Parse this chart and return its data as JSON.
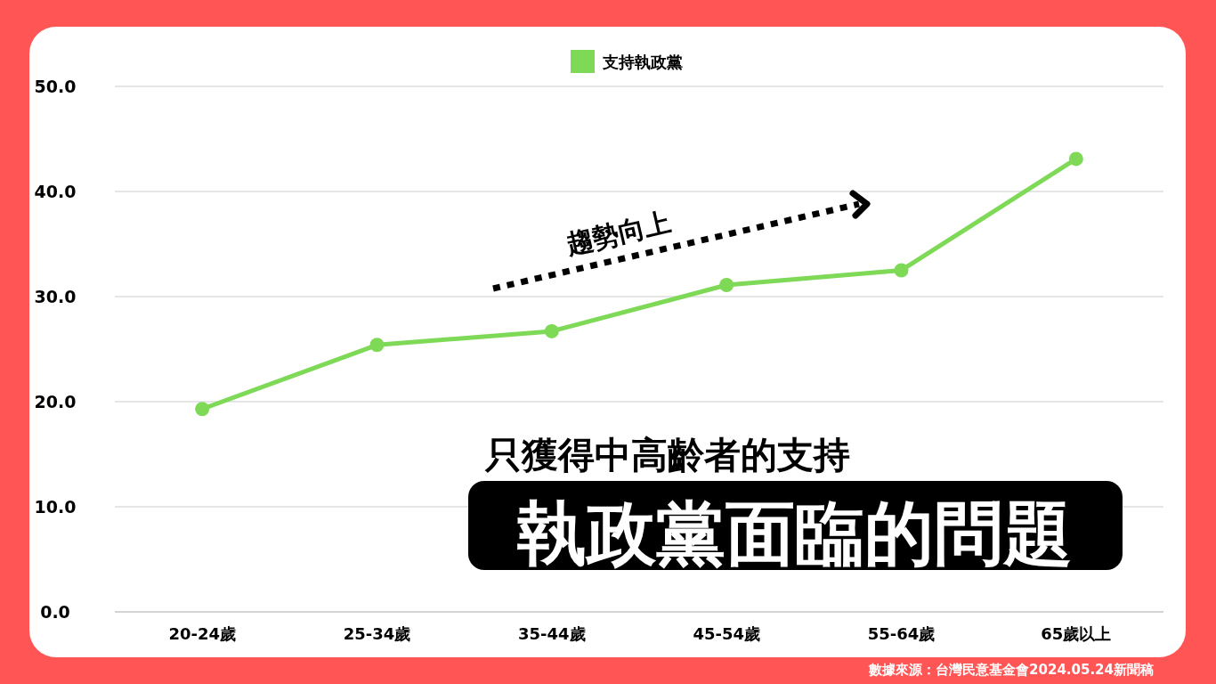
{
  "chart_data": {
    "type": "line",
    "title": "執政黨面臨的問題",
    "subtitle": "只獲得中高齡者的支持",
    "categories": [
      "20-24歲",
      "25-34歲",
      "35-44歲",
      "45-54歲",
      "55-64歲",
      "65歲以上"
    ],
    "series": [
      {
        "name": "支持執政黨",
        "color": "#7ed957",
        "values": [
          19.3,
          25.4,
          26.7,
          31.1,
          32.5,
          43.1
        ]
      }
    ],
    "ylim": [
      0,
      50
    ],
    "yticks": [
      {
        "value": 0,
        "label": "0.0"
      },
      {
        "value": 10,
        "label": "10.0"
      },
      {
        "value": 20,
        "label": "20.0"
      },
      {
        "value": 30,
        "label": "30.0"
      },
      {
        "value": 40,
        "label": "40.0"
      },
      {
        "value": 50,
        "label": "50.0"
      }
    ],
    "grid": "y",
    "legend": "top",
    "marker": "circle",
    "line_style": "solid",
    "annotations": [
      "趨勢向上",
      "數據來源：台灣民意基金會2024.05.24新聞稿"
    ]
  }
}
